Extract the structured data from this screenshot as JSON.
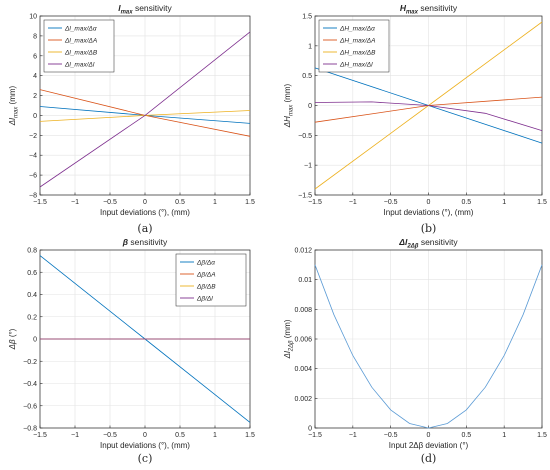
{
  "chart_data": [
    {
      "panel_label": "(a)",
      "type": "line",
      "title_main": "l",
      "title_sub": "max",
      "title_suffix": " sensitivity",
      "xlabel": "Input deviations (°), (mm)",
      "ylabel_main": "Δl",
      "ylabel_sub": "max",
      "ylabel_suffix": " (mm)",
      "xlim": [
        -1.5,
        1.5
      ],
      "ylim": [
        -8,
        10
      ],
      "xticks": [
        -1.5,
        -1,
        -0.5,
        0,
        0.5,
        1,
        1.5
      ],
      "xtick_labels": [
        "−1.5",
        "−1",
        "−0.5",
        "0",
        "0.5",
        "1",
        "1.5"
      ],
      "yticks": [
        -8,
        -6,
        -4,
        -2,
        0,
        2,
        4,
        6,
        8,
        10
      ],
      "ytick_labels": [
        "−8",
        "−6",
        "−4",
        "−2",
        "0",
        "2",
        "4",
        "6",
        "8",
        "10"
      ],
      "grid": true,
      "legend_position": "top-left",
      "series": [
        {
          "name": "Δl_max/Δα",
          "color": "#0072bd",
          "x": [
            -1.5,
            0,
            1.5
          ],
          "y": [
            0.9,
            0,
            -0.8
          ]
        },
        {
          "name": "Δl_max/ΔA",
          "color": "#d95319",
          "x": [
            -1.5,
            0,
            1.5
          ],
          "y": [
            2.6,
            0,
            -2.1
          ]
        },
        {
          "name": "Δl_max/ΔB",
          "color": "#edb120",
          "x": [
            -1.5,
            0,
            1.5
          ],
          "y": [
            -0.6,
            0,
            0.5
          ]
        },
        {
          "name": "Δl_max/Δl",
          "color": "#7e2f8e",
          "x": [
            -1.5,
            0,
            1.5
          ],
          "y": [
            -7.2,
            0,
            8.4
          ]
        }
      ]
    },
    {
      "panel_label": "(b)",
      "type": "line",
      "title_main": "H",
      "title_sub": "max",
      "title_suffix": " sensitivity",
      "xlabel": "Input deviations (°), (mm)",
      "ylabel_main": "ΔH",
      "ylabel_sub": "max",
      "ylabel_suffix": " (mm)",
      "xlim": [
        -1.5,
        1.5
      ],
      "ylim": [
        -1.5,
        1.5
      ],
      "xticks": [
        -1.5,
        -1,
        -0.5,
        0,
        0.5,
        1,
        1.5
      ],
      "xtick_labels": [
        "−1.5",
        "−1",
        "−0.5",
        "0",
        "0.5",
        "1",
        "1.5"
      ],
      "yticks": [
        -1.5,
        -1,
        -0.5,
        0,
        0.5,
        1,
        1.5
      ],
      "ytick_labels": [
        "−1.5",
        "−1",
        "−0.5",
        "0",
        "0.5",
        "1",
        "1.5"
      ],
      "grid": true,
      "legend_position": "top-left",
      "series": [
        {
          "name": "ΔH_max/Δα",
          "color": "#0072bd",
          "x": [
            -1.5,
            0,
            1.5
          ],
          "y": [
            0.63,
            0,
            -0.63
          ]
        },
        {
          "name": "ΔH_max/ΔA",
          "color": "#d95319",
          "x": [
            -1.5,
            0,
            1.5
          ],
          "y": [
            -0.28,
            0,
            0.14
          ]
        },
        {
          "name": "ΔH_max/ΔB",
          "color": "#edb120",
          "x": [
            -1.5,
            0,
            1.5
          ],
          "y": [
            -1.4,
            0,
            1.4
          ]
        },
        {
          "name": "ΔH_max/Δl",
          "color": "#7e2f8e",
          "x": [
            -1.5,
            -0.75,
            0,
            0.75,
            1.5
          ],
          "y": [
            0.05,
            0.06,
            0,
            -0.13,
            -0.42
          ]
        }
      ]
    },
    {
      "panel_label": "(c)",
      "type": "line",
      "title_main": "β",
      "title_sub": "",
      "title_suffix": " sensitivity",
      "xlabel": "Input deviations (°), (mm)",
      "ylabel_main": "Δβ",
      "ylabel_sub": "",
      "ylabel_suffix": " (°)",
      "xlim": [
        -1.5,
        1.5
      ],
      "ylim": [
        -0.8,
        0.8
      ],
      "xticks": [
        -1.5,
        -1,
        -0.5,
        0,
        0.5,
        1,
        1.5
      ],
      "xtick_labels": [
        "−1.5",
        "−1",
        "−0.5",
        "0",
        "0.5",
        "1",
        "1.5"
      ],
      "yticks": [
        -0.8,
        -0.6,
        -0.4,
        -0.2,
        0,
        0.2,
        0.4,
        0.6,
        0.8
      ],
      "ytick_labels": [
        "−0.8",
        "−0.6",
        "−0.4",
        "−0.2",
        "0",
        "0.2",
        "0.4",
        "0.6",
        "0.8"
      ],
      "grid": true,
      "legend_position": "top-right",
      "series": [
        {
          "name": "Δβ/Δα",
          "color": "#0072bd",
          "x": [
            -1.5,
            0,
            1.5
          ],
          "y": [
            0.75,
            0,
            -0.75
          ]
        },
        {
          "name": "Δβ/ΔA",
          "color": "#d95319",
          "x": [
            -1.5,
            0,
            1.5
          ],
          "y": [
            0,
            0,
            0
          ]
        },
        {
          "name": "Δβ/ΔB",
          "color": "#edb120",
          "x": [
            -1.5,
            0,
            1.5
          ],
          "y": [
            0,
            0,
            0
          ]
        },
        {
          "name": "Δβ/Δl",
          "color": "#7e2f8e",
          "x": [
            -1.5,
            0,
            1.5
          ],
          "y": [
            0,
            0,
            0
          ]
        }
      ]
    },
    {
      "panel_label": "(d)",
      "type": "line",
      "title_main": "Δl",
      "title_sub": "2Δβ",
      "title_suffix": " sensitivity",
      "xlabel": "Input 2Δβ deviation (°)",
      "ylabel_main": "Δl",
      "ylabel_sub": "2Δβ",
      "ylabel_suffix": " (mm)",
      "xlim": [
        -1.5,
        1.5
      ],
      "ylim": [
        0,
        0.012
      ],
      "xticks": [
        -1.5,
        -1,
        -0.5,
        0,
        0.5,
        1,
        1.5
      ],
      "xtick_labels": [
        "−1.5",
        "−1",
        "−0.5",
        "0",
        "0.5",
        "1",
        "1.5"
      ],
      "yticks": [
        0,
        0.002,
        0.004,
        0.006,
        0.008,
        0.01,
        0.012
      ],
      "ytick_labels": [
        "0",
        "0.002",
        "0.004",
        "0.006",
        "0.008",
        "0.01",
        "0.012"
      ],
      "grid": true,
      "legend_position": "",
      "series": [
        {
          "name": "",
          "color": "#5b9bd5",
          "x": [
            -1.5,
            -1.25,
            -1,
            -0.75,
            -0.5,
            -0.25,
            0,
            0.25,
            0.5,
            0.75,
            1,
            1.25,
            1.5
          ],
          "y": [
            0.011,
            0.00764,
            0.00489,
            0.00275,
            0.00122,
            0.000306,
            0,
            0.000306,
            0.00122,
            0.00275,
            0.00489,
            0.00764,
            0.011
          ]
        }
      ]
    }
  ]
}
